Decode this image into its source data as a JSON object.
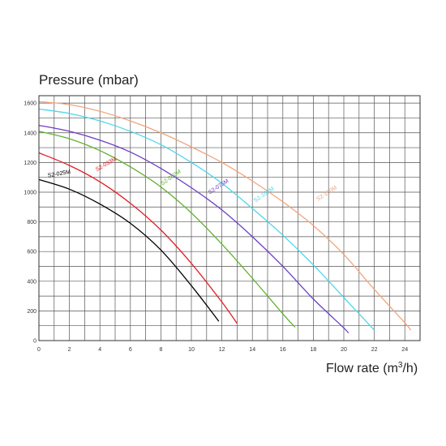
{
  "chart_data": {
    "type": "line",
    "title": "",
    "ylabel": "Pressure (mbar)",
    "xlabel_main": "Flow rate (m",
    "xlabel_sup": "3",
    "xlabel_end": "/h)",
    "xlim": [
      0,
      25
    ],
    "ylim": [
      0,
      1650
    ],
    "xticks": [
      0,
      2,
      4,
      6,
      8,
      10,
      12,
      14,
      16,
      18,
      20,
      22,
      24
    ],
    "yticks": [
      0,
      200,
      400,
      600,
      800,
      1000,
      1200,
      1400,
      1600
    ],
    "grid": true,
    "series": [
      {
        "name": "S2-025M",
        "color": "#000000",
        "x": [
          0,
          2,
          4,
          6,
          8,
          10,
          11.8
        ],
        "y": [
          1085,
          1020,
          920,
          790,
          610,
          370,
          130
        ],
        "label_x": 0.6,
        "label_y": 1100,
        "label_angle": -10
      },
      {
        "name": "S2-033M",
        "color": "#e31e24",
        "x": [
          0,
          2,
          4,
          6,
          8,
          10,
          12,
          13
        ],
        "y": [
          1265,
          1180,
          1070,
          925,
          745,
          520,
          260,
          115
        ],
        "label_x": 3.8,
        "label_y": 1140,
        "label_angle": -30
      },
      {
        "name": "S2-050M",
        "color": "#62b22f",
        "x": [
          0,
          2,
          4,
          6,
          8,
          10,
          12,
          14,
          16,
          16.8
        ],
        "y": [
          1410,
          1360,
          1280,
          1170,
          1035,
          860,
          650,
          420,
          180,
          90
        ],
        "label_x": 8.1,
        "label_y": 1045,
        "label_angle": -35
      },
      {
        "name": "S2-075M",
        "color": "#6c3ec4",
        "x": [
          0,
          2,
          4,
          6,
          8,
          10,
          12,
          14,
          16,
          18,
          20,
          20.3
        ],
        "y": [
          1450,
          1410,
          1350,
          1270,
          1160,
          1030,
          880,
          700,
          500,
          280,
          85,
          50
        ],
        "label_x": 11.2,
        "label_y": 985,
        "label_angle": -33
      },
      {
        "name": "S2-100M",
        "color": "#4cd8e8",
        "x": [
          0,
          2,
          4,
          6,
          8,
          10,
          12,
          14,
          16,
          18,
          20,
          22
        ],
        "y": [
          1560,
          1530,
          1480,
          1410,
          1320,
          1200,
          1060,
          890,
          710,
          510,
          290,
          70
        ],
        "label_x": 14.2,
        "label_y": 930,
        "label_angle": -35
      },
      {
        "name": "S2-150M",
        "color": "#f3a47b",
        "x": [
          0,
          2,
          4,
          6,
          8,
          10,
          12,
          14,
          16,
          18,
          20,
          22,
          24,
          24.4
        ],
        "y": [
          1610,
          1590,
          1545,
          1480,
          1400,
          1305,
          1200,
          1075,
          935,
          775,
          580,
          345,
          120,
          70
        ],
        "label_x": 18.3,
        "label_y": 940,
        "label_angle": -33
      }
    ]
  }
}
